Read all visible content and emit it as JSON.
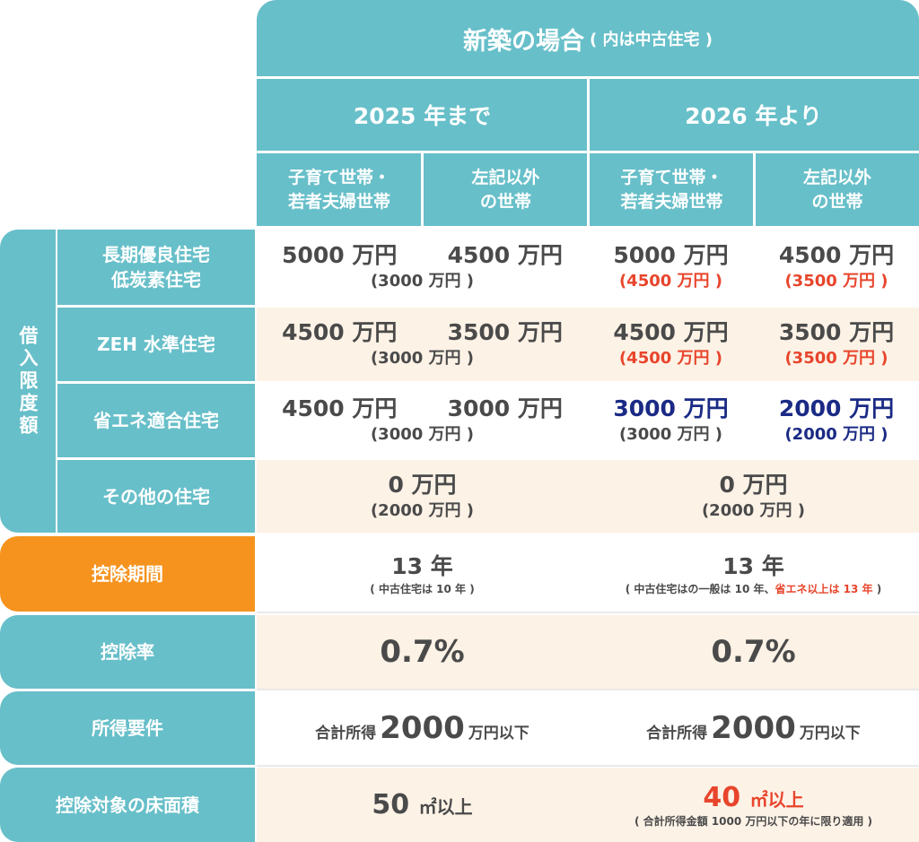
{
  "header": {
    "title": "新築の場合",
    "title_note": "( 内は中古住宅 )",
    "col_2025": "2025 年まで",
    "col_2026": "2026 年より",
    "sub_child": [
      "子育て世帯・",
      "若者夫婦世帯"
    ],
    "sub_other": [
      "左記以外",
      "の世帯"
    ]
  },
  "side_label": "借入限度額",
  "rows": {
    "long_term": {
      "label": [
        "長期優良住宅",
        "低炭素住宅"
      ],
      "c2025_a": "5000 万円",
      "c2025_b": "4500 万円",
      "c2025_used": "(3000 万円 )",
      "c2026_a": "5000 万円",
      "c2026_a_used": "(4500 万円 )",
      "c2026_b": "4500 万円",
      "c2026_b_used": "(3500 万円 )"
    },
    "zeh": {
      "label": "ZEH 水準住宅",
      "c2025_a": "4500 万円",
      "c2025_b": "3500 万円",
      "c2025_used": "(3000 万円 )",
      "c2026_a": "4500 万円",
      "c2026_a_used": "(4500 万円 )",
      "c2026_b": "3500 万円",
      "c2026_b_used": "(3500 万円 )"
    },
    "energy": {
      "label": "省エネ適合住宅",
      "c2025_a": "4500 万円",
      "c2025_b": "3000 万円",
      "c2025_used": "(3000 万円 )",
      "c2026_a": "3000 万円",
      "c2026_a_used": "(3000 万円 )",
      "c2026_b": "2000 万円",
      "c2026_b_used": "(2000 万円 )"
    },
    "other": {
      "label": "その他の住宅",
      "c2025": "0 万円",
      "c2025_used": "(2000 万円 )",
      "c2026": "0 万円",
      "c2026_used": "(2000 万円 )"
    },
    "period": {
      "label": "控除期間",
      "c2025": "13 年",
      "c2025_note": "( 中古住宅は 10 年 )",
      "c2026": "13 年",
      "c2026_note_a": "( 中古住宅はの一般は 10 年、",
      "c2026_note_b": "省エネ以上は 13 年",
      "c2026_note_c": " )"
    },
    "rate": {
      "label": "控除率",
      "c2025": "0.7%",
      "c2026": "0.7%"
    },
    "income": {
      "label": "所得要件",
      "prefix": "合計所得",
      "amount": "2000",
      "suffix": "万円以下"
    },
    "floor": {
      "label": "控除対象の床面積",
      "c2025_num": "50",
      "c2025_unit": "㎡以上",
      "c2026_num": "40",
      "c2026_unit": "㎡以上",
      "c2026_note": "( 合計所得金額 1000 万円以下の年に限り適用 )"
    }
  },
  "colors": {
    "teal": "#67bfc9",
    "orange": "#f5931e",
    "cream": "#fdf2e6",
    "red": "#e8452c",
    "navy": "#1a2a85"
  }
}
